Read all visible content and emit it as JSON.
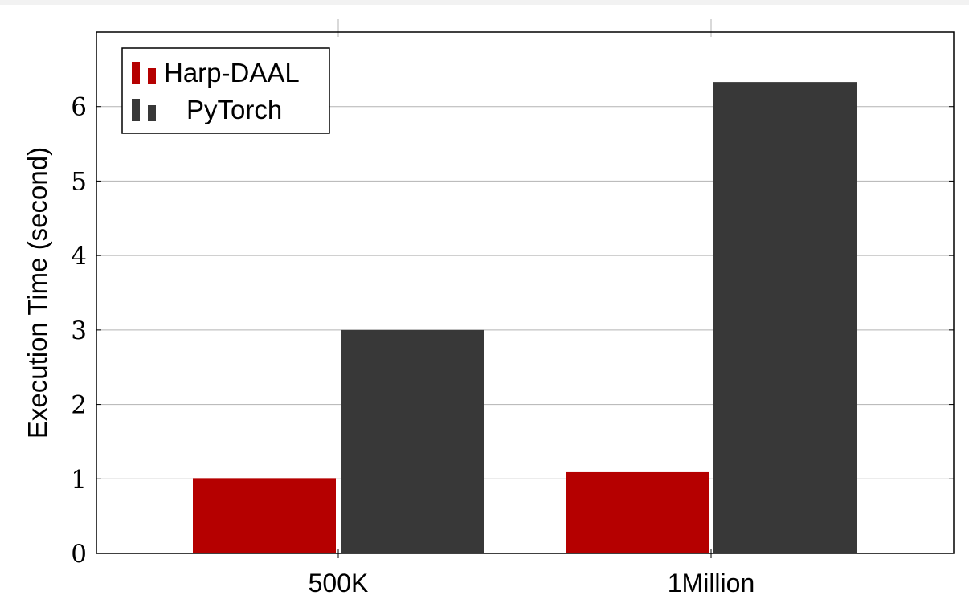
{
  "chart_data": {
    "type": "bar",
    "categories": [
      "500K",
      "1Million"
    ],
    "series": [
      {
        "name": "Harp-DAAL",
        "values": [
          1.01,
          1.09
        ],
        "color": "#b50000"
      },
      {
        "name": "PyTorch",
        "values": [
          3.0,
          6.33
        ],
        "color": "#383838"
      }
    ],
    "title": "",
    "xlabel": "",
    "ylabel": "Execution Time (second)",
    "ylim": [
      0,
      7
    ],
    "yticks": [
      0,
      1,
      2,
      3,
      4,
      5,
      6
    ],
    "grid": true,
    "legend_position": "top-left"
  }
}
